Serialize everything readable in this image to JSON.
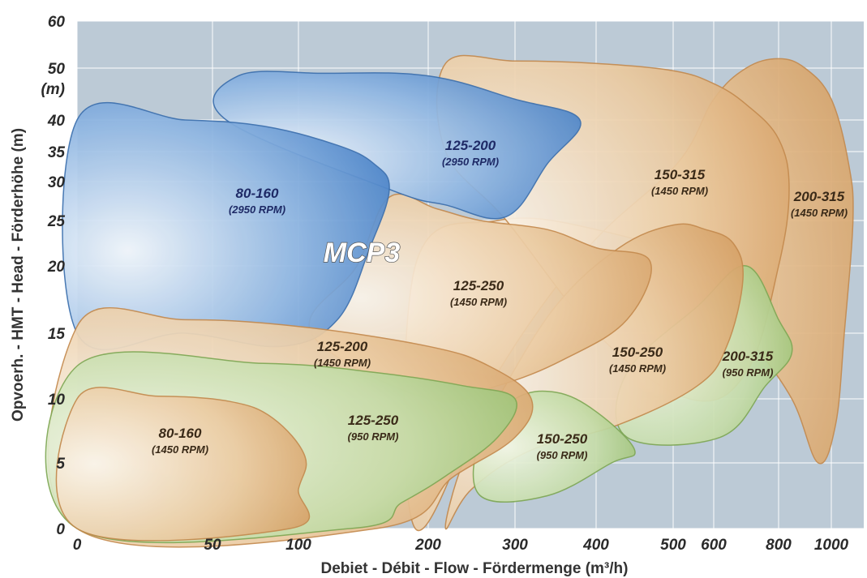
{
  "chart_data": {
    "type": "area",
    "title": "",
    "xlabel": "Debiet - Débit  -  Flow  -  Fördermenge   (m³/h)",
    "ylabel": "Opvoerh.  -  HMT  -  Head  -  Förderhöhe   (m)",
    "y_unit": "(m)",
    "brand": "MCP3",
    "x_ticks": [
      0,
      50,
      100,
      200,
      300,
      400,
      500,
      600,
      800,
      1000
    ],
    "y_ticks": [
      0,
      5,
      10,
      15,
      20,
      25,
      30,
      35,
      40,
      50,
      60
    ],
    "xlim": [
      0,
      1150
    ],
    "ylim": [
      0,
      60
    ],
    "grid": true,
    "colors": {
      "plot_bg": "#bccad6",
      "grid": "#ffffff",
      "orange": "#dcaa72",
      "green": "#a5c77c",
      "blue": "#4f87c9"
    },
    "series": [
      {
        "label": "200-315",
        "rpm": "(1450 RPM)",
        "color": "orange",
        "outline": [
          [
            190,
            0
          ],
          [
            280,
            12
          ],
          [
            390,
            22
          ],
          [
            510,
            33
          ],
          [
            600,
            44
          ],
          [
            700,
            50
          ],
          [
            800,
            52
          ],
          [
            900,
            50
          ],
          [
            1000,
            44
          ],
          [
            1080,
            33
          ],
          [
            1100,
            25
          ],
          [
            1060,
            15
          ],
          [
            1020,
            8
          ],
          [
            950,
            5
          ],
          [
            850,
            10
          ],
          [
            700,
            15
          ],
          [
            560,
            20
          ],
          [
            400,
            24
          ],
          [
            280,
            25
          ],
          [
            190,
            20
          ]
        ]
      },
      {
        "label": "150-315",
        "rpm": "(1450 RPM)",
        "color": "orange",
        "outline": [
          [
            220,
            51
          ],
          [
            300,
            51.5
          ],
          [
            400,
            51
          ],
          [
            500,
            49.5
          ],
          [
            600,
            47
          ],
          [
            700,
            43
          ],
          [
            800,
            37
          ],
          [
            840,
            29
          ],
          [
            800,
            20
          ],
          [
            700,
            12
          ],
          [
            540,
            10
          ],
          [
            400,
            15
          ],
          [
            290,
            25
          ],
          [
            220,
            35
          ]
        ]
      },
      {
        "label": "200-315",
        "rpm": "(950 RPM)",
        "color": "green",
        "outline": [
          [
            440,
            7
          ],
          [
            620,
            7
          ],
          [
            760,
            11
          ],
          [
            850,
            13.5
          ],
          [
            800,
            16
          ],
          [
            700,
            20
          ],
          [
            560,
            17
          ],
          [
            440,
            12
          ]
        ]
      },
      {
        "label": "150-250",
        "rpm": "(1450 RPM)",
        "color": "orange",
        "outline": [
          [
            220,
            0
          ],
          [
            240,
            5
          ],
          [
            280,
            10
          ],
          [
            350,
            17
          ],
          [
            430,
            22
          ],
          [
            500,
            24.5
          ],
          [
            580,
            24
          ],
          [
            660,
            22.5
          ],
          [
            690,
            19
          ],
          [
            640,
            14
          ],
          [
            560,
            11
          ],
          [
            430,
            8
          ],
          [
            320,
            6
          ],
          [
            250,
            3
          ]
        ]
      },
      {
        "label": "125-250",
        "rpm": "(1450 RPM)",
        "color": "orange",
        "outline": [
          [
            110,
            15
          ],
          [
            145,
            20
          ],
          [
            170,
            28
          ],
          [
            210,
            26.5
          ],
          [
            260,
            25
          ],
          [
            340,
            24
          ],
          [
            400,
            22
          ],
          [
            470,
            20.5
          ],
          [
            440,
            16
          ],
          [
            360,
            13
          ],
          [
            280,
            11
          ],
          [
            200,
            10
          ]
        ]
      },
      {
        "label": "125-200",
        "rpm": "(2950 RPM)",
        "color": "blue",
        "outline": [
          [
            58,
            40
          ],
          [
            65,
            48.5
          ],
          [
            120,
            49
          ],
          [
            200,
            48.5
          ],
          [
            300,
            44
          ],
          [
            380,
            40
          ],
          [
            340,
            33
          ],
          [
            290,
            25.5
          ],
          [
            220,
            27
          ],
          [
            170,
            29
          ]
        ]
      },
      {
        "label": "80-160",
        "rpm": "(2950 RPM)",
        "color": "blue",
        "outline": [
          [
            0,
            40
          ],
          [
            40,
            40
          ],
          [
            80,
            39
          ],
          [
            130,
            36
          ],
          [
            158,
            33
          ],
          [
            170,
            29
          ],
          [
            155,
            22
          ],
          [
            130,
            16
          ],
          [
            90,
            14
          ],
          [
            40,
            15
          ],
          [
            0,
            15
          ]
        ]
      },
      {
        "label": "150-250",
        "rpm": "(950 RPM)",
        "color": "green",
        "outline": [
          [
            260,
            2.5
          ],
          [
            340,
            2.5
          ],
          [
            420,
            5
          ],
          [
            450,
            6
          ],
          [
            400,
            9
          ],
          [
            350,
            10.5
          ],
          [
            300,
            10
          ],
          [
            260,
            7
          ]
        ]
      },
      {
        "label": "125-200",
        "rpm": "(1450 RPM)",
        "color": "orange",
        "outline": [
          [
            0,
            15.5
          ],
          [
            40,
            16
          ],
          [
            100,
            15.5
          ],
          [
            200,
            14
          ],
          [
            270,
            12.5
          ],
          [
            320,
            10
          ],
          [
            300,
            7
          ],
          [
            230,
            4
          ],
          [
            160,
            0
          ],
          [
            0,
            0
          ]
        ]
      },
      {
        "label": "125-250",
        "rpm": "(950 RPM)",
        "color": "green",
        "outline": [
          [
            0,
            12.5
          ],
          [
            80,
            12.7
          ],
          [
            160,
            12
          ],
          [
            240,
            11
          ],
          [
            300,
            10
          ],
          [
            280,
            7
          ],
          [
            220,
            4
          ],
          [
            180,
            2
          ],
          [
            140,
            0
          ],
          [
            0,
            0
          ]
        ]
      },
      {
        "label": "80-160",
        "rpm": "(1450 RPM)",
        "color": "orange",
        "outline": [
          [
            0,
            10
          ],
          [
            30,
            10.2
          ],
          [
            60,
            9.8
          ],
          [
            85,
            8.5
          ],
          [
            105,
            5.5
          ],
          [
            100,
            3
          ],
          [
            95,
            0
          ],
          [
            0,
            0
          ]
        ]
      }
    ]
  }
}
